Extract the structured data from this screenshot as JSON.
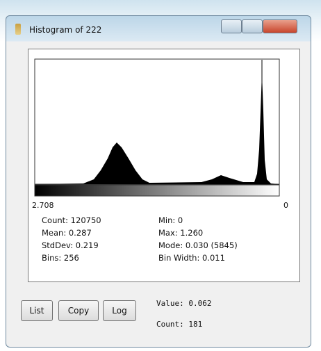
{
  "window": {
    "title": "Histogram of 222"
  },
  "histogram": {
    "left_label": "2.708",
    "right_label": "0"
  },
  "stats": {
    "left": [
      "Count: 120750",
      "Mean: 0.287",
      "StdDev: 0.219",
      "Bins: 256"
    ],
    "right": [
      "Min: 0",
      "Max: 1.260",
      "Mode: 0.030 (5845)",
      "Bin Width: 0.011"
    ]
  },
  "buttons": [
    "List",
    "Copy",
    "Log"
  ],
  "readout": {
    "value": "Value: 0.062",
    "count": "Count: 181"
  }
}
